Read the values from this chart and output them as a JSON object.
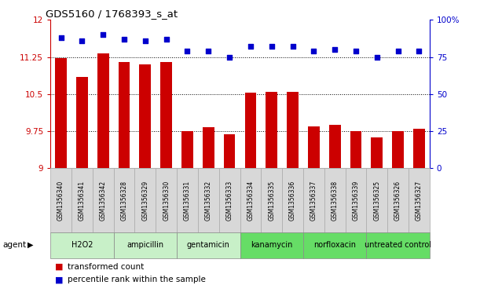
{
  "title": "GDS5160 / 1768393_s_at",
  "samples": [
    "GSM1356340",
    "GSM1356341",
    "GSM1356342",
    "GSM1356328",
    "GSM1356329",
    "GSM1356330",
    "GSM1356331",
    "GSM1356332",
    "GSM1356333",
    "GSM1356334",
    "GSM1356335",
    "GSM1356336",
    "GSM1356337",
    "GSM1356338",
    "GSM1356339",
    "GSM1356325",
    "GSM1356326",
    "GSM1356327"
  ],
  "bar_values": [
    11.22,
    10.85,
    11.32,
    11.15,
    11.1,
    11.15,
    9.75,
    9.83,
    9.68,
    10.53,
    10.55,
    10.55,
    9.84,
    9.88,
    9.75,
    9.62,
    9.75,
    9.79
  ],
  "percentile_values": [
    88,
    86,
    90,
    87,
    86,
    87,
    79,
    79,
    75,
    82,
    82,
    82,
    79,
    80,
    79,
    75,
    79,
    79
  ],
  "agents": [
    {
      "label": "H2O2",
      "start": 0,
      "end": 3,
      "color": "#c8f0c8"
    },
    {
      "label": "ampicillin",
      "start": 3,
      "end": 6,
      "color": "#c8f0c8"
    },
    {
      "label": "gentamicin",
      "start": 6,
      "end": 9,
      "color": "#c8f0c8"
    },
    {
      "label": "kanamycin",
      "start": 9,
      "end": 12,
      "color": "#66dd66"
    },
    {
      "label": "norfloxacin",
      "start": 12,
      "end": 15,
      "color": "#66dd66"
    },
    {
      "label": "untreated control",
      "start": 15,
      "end": 18,
      "color": "#66dd66"
    }
  ],
  "ylim_left": [
    9.0,
    12.0
  ],
  "ylim_right": [
    0,
    100
  ],
  "yticks_left": [
    9.0,
    9.75,
    10.5,
    11.25,
    12.0
  ],
  "yticks_left_labels": [
    "9",
    "9.75",
    "10.5",
    "11.25",
    "12"
  ],
  "yticks_right": [
    0,
    25,
    50,
    75,
    100
  ],
  "yticks_right_labels": [
    "0",
    "25",
    "50",
    "75",
    "100%"
  ],
  "bar_color": "#cc0000",
  "dot_color": "#0000cc",
  "grid_color": "#000000",
  "bg_color": "#ffffff",
  "title_color": "#000000",
  "left_axis_color": "#cc0000",
  "right_axis_color": "#0000cc",
  "sample_box_color": "#d8d8d8",
  "sample_box_edge": "#aaaaaa"
}
